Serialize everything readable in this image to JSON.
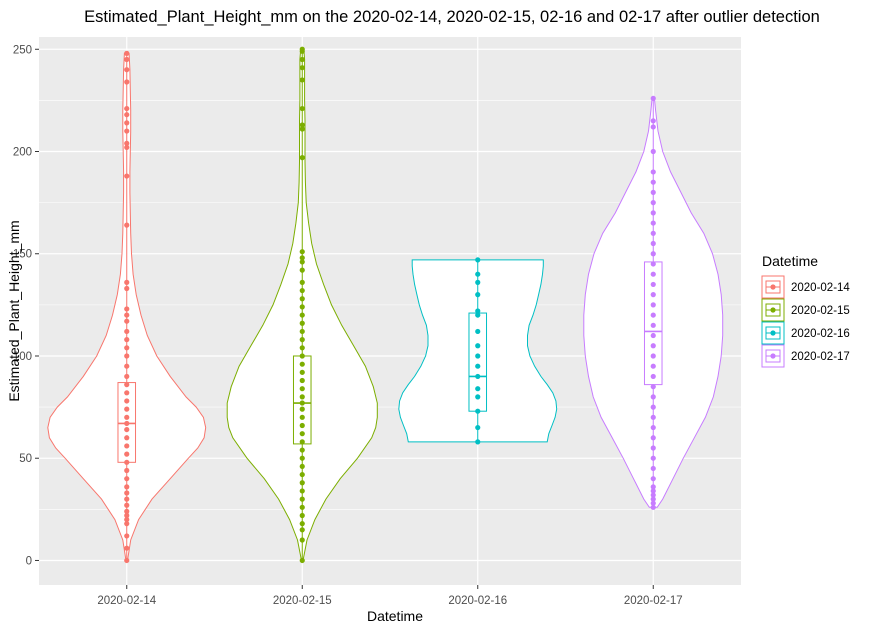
{
  "chart_data": {
    "type": "violin",
    "title": "Estimated_Plant_Height_mm on the 2020-02-14, 2020-02-15, 02-16 and 02-17 after outlier detection",
    "xlabel": "Datetime",
    "ylabel": "Estimated_Plant_Height_mm",
    "categories": [
      "2020-02-14",
      "2020-02-15",
      "2020-02-16",
      "2020-02-17"
    ],
    "ylim": [
      -12,
      256
    ],
    "yticks": [
      0,
      50,
      100,
      150,
      200,
      250
    ],
    "grid": true,
    "panel_background": "#ebebeb",
    "legend": {
      "title": "Datetime",
      "position": "right",
      "entries": [
        "2020-02-14",
        "2020-02-15",
        "2020-02-16",
        "2020-02-17"
      ]
    },
    "series": [
      {
        "name": "2020-02-14",
        "color": "#F8766D",
        "box": {
          "min": 0,
          "q1": 48,
          "median": 67,
          "q3": 87,
          "max": 248
        },
        "violin_profile": [
          [
            0,
            1
          ],
          [
            10,
            5
          ],
          [
            20,
            15
          ],
          [
            30,
            32
          ],
          [
            40,
            55
          ],
          [
            50,
            78
          ],
          [
            55,
            90
          ],
          [
            60,
            98
          ],
          [
            65,
            100
          ],
          [
            70,
            97
          ],
          [
            75,
            88
          ],
          [
            80,
            75
          ],
          [
            90,
            55
          ],
          [
            100,
            38
          ],
          [
            110,
            26
          ],
          [
            120,
            18
          ],
          [
            130,
            12
          ],
          [
            140,
            8
          ],
          [
            150,
            6
          ],
          [
            160,
            5
          ],
          [
            170,
            4.5
          ],
          [
            180,
            4
          ],
          [
            190,
            4
          ],
          [
            200,
            4.5
          ],
          [
            210,
            5
          ],
          [
            220,
            5
          ],
          [
            230,
            4.5
          ],
          [
            240,
            4
          ],
          [
            248,
            3
          ]
        ],
        "points": [
          0,
          6,
          12,
          18,
          20,
          22,
          24,
          27,
          30,
          33,
          36,
          40,
          44,
          48,
          52,
          56,
          60,
          64,
          67,
          70,
          74,
          78,
          82,
          86,
          90,
          95,
          100,
          104,
          108,
          112,
          117,
          120,
          123,
          133,
          136,
          164,
          188,
          202,
          204,
          210,
          214,
          218,
          221,
          234,
          240,
          245,
          248
        ]
      },
      {
        "name": "2020-02-15",
        "color": "#7CAE00",
        "box": {
          "min": 0,
          "q1": 57,
          "median": 77,
          "q3": 100,
          "max": 250
        },
        "violin_profile": [
          [
            0,
            1
          ],
          [
            10,
            6
          ],
          [
            20,
            16
          ],
          [
            30,
            30
          ],
          [
            40,
            48
          ],
          [
            50,
            70
          ],
          [
            60,
            88
          ],
          [
            65,
            93
          ],
          [
            70,
            95
          ],
          [
            77,
            95
          ],
          [
            85,
            90
          ],
          [
            95,
            80
          ],
          [
            105,
            65
          ],
          [
            115,
            50
          ],
          [
            125,
            37
          ],
          [
            135,
            27
          ],
          [
            145,
            18
          ],
          [
            155,
            12
          ],
          [
            165,
            8
          ],
          [
            175,
            5
          ],
          [
            185,
            4
          ],
          [
            195,
            3.5
          ],
          [
            205,
            3.5
          ],
          [
            215,
            3.5
          ],
          [
            225,
            3
          ],
          [
            235,
            3
          ],
          [
            245,
            3
          ],
          [
            250,
            2
          ]
        ],
        "points": [
          0,
          10,
          15,
          18,
          22,
          26,
          30,
          34,
          38,
          42,
          46,
          50,
          54,
          58,
          62,
          66,
          70,
          74,
          77,
          80,
          84,
          88,
          92,
          96,
          100,
          104,
          108,
          112,
          116,
          120,
          124,
          128,
          132,
          136,
          142,
          146,
          148,
          151,
          197,
          211,
          213,
          221,
          235,
          241,
          245,
          249,
          250
        ]
      },
      {
        "name": "2020-02-16",
        "color": "#00BFC4",
        "box": {
          "min": 58,
          "q1": 73,
          "median": 90,
          "q3": 121,
          "max": 147
        },
        "violin_profile": [
          [
            58,
            88
          ],
          [
            62,
            90
          ],
          [
            66,
            94
          ],
          [
            70,
            98
          ],
          [
            74,
            100
          ],
          [
            78,
            99
          ],
          [
            82,
            95
          ],
          [
            86,
            88
          ],
          [
            90,
            80
          ],
          [
            95,
            72
          ],
          [
            100,
            66
          ],
          [
            105,
            63
          ],
          [
            110,
            63
          ],
          [
            115,
            65
          ],
          [
            120,
            70
          ],
          [
            125,
            74
          ],
          [
            130,
            77
          ],
          [
            135,
            80
          ],
          [
            140,
            82
          ],
          [
            144,
            83
          ],
          [
            147,
            83
          ]
        ],
        "points": [
          58,
          65,
          73,
          80,
          84,
          90,
          95,
          100,
          105,
          112,
          120,
          122,
          130,
          136,
          140,
          147
        ]
      },
      {
        "name": "2020-02-17",
        "color": "#C77CFF",
        "box": {
          "min": 26,
          "q1": 86,
          "median": 112,
          "q3": 146,
          "max": 226
        },
        "violin_profile": [
          [
            26,
            5
          ],
          [
            30,
            12
          ],
          [
            40,
            25
          ],
          [
            50,
            38
          ],
          [
            60,
            52
          ],
          [
            70,
            66
          ],
          [
            80,
            76
          ],
          [
            90,
            82
          ],
          [
            100,
            86
          ],
          [
            110,
            88
          ],
          [
            120,
            88
          ],
          [
            130,
            86
          ],
          [
            140,
            82
          ],
          [
            150,
            75
          ],
          [
            160,
            64
          ],
          [
            170,
            48
          ],
          [
            180,
            35
          ],
          [
            190,
            22
          ],
          [
            200,
            12
          ],
          [
            210,
            6
          ],
          [
            220,
            3
          ],
          [
            226,
            1.5
          ]
        ],
        "points": [
          26,
          28,
          30,
          32,
          34,
          36,
          40,
          45,
          50,
          55,
          60,
          65,
          70,
          75,
          80,
          85,
          90,
          95,
          100,
          105,
          110,
          115,
          120,
          125,
          130,
          135,
          140,
          145,
          150,
          155,
          160,
          165,
          170,
          175,
          180,
          185,
          190,
          200,
          212,
          215,
          226
        ]
      }
    ]
  }
}
